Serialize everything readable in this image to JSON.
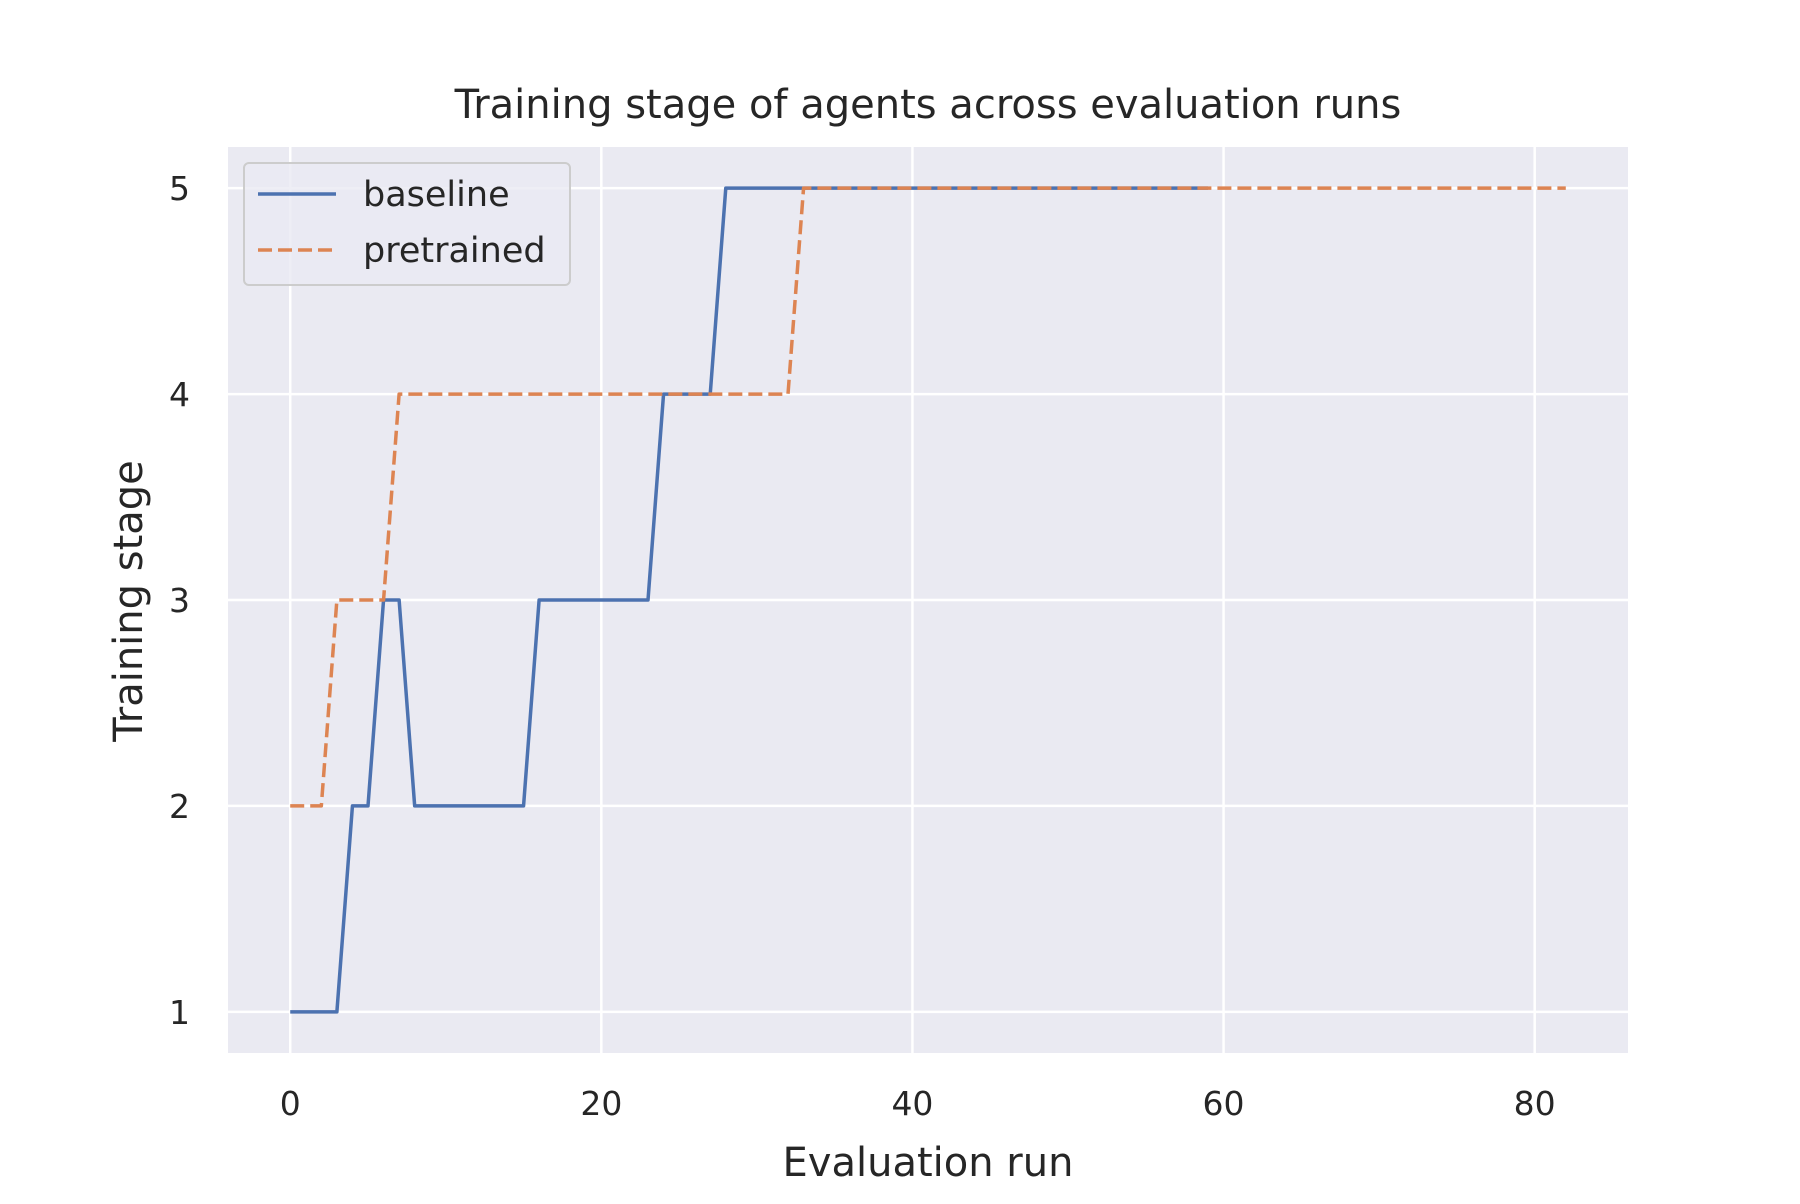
{
  "chart_data": {
    "type": "line",
    "title": "Training stage of agents across evaluation runs",
    "xlabel": "Evaluation run",
    "ylabel": "Training stage",
    "xlim": [
      -4,
      86
    ],
    "ylim": [
      0.8,
      5.2
    ],
    "xticks": [
      0,
      20,
      40,
      60,
      80
    ],
    "yticks": [
      1,
      2,
      3,
      4,
      5
    ],
    "xtick_labels": [
      "0",
      "20",
      "40",
      "60",
      "80"
    ],
    "ytick_labels": [
      "1",
      "2",
      "3",
      "4",
      "5"
    ],
    "grid": true,
    "legend_position": "top-left",
    "background_color": "#eaeaf2",
    "grid_color": "#ffffff",
    "series": [
      {
        "name": "baseline",
        "color": "#4c72b0",
        "linestyle": "solid",
        "points": [
          [
            0,
            1
          ],
          [
            3,
            1
          ],
          [
            4,
            2
          ],
          [
            5,
            2
          ],
          [
            6,
            3
          ],
          [
            7,
            3
          ],
          [
            8,
            2
          ],
          [
            15,
            2
          ],
          [
            16,
            3
          ],
          [
            23,
            3
          ],
          [
            24,
            4
          ],
          [
            27,
            4
          ],
          [
            28,
            5
          ],
          [
            59,
            5
          ]
        ]
      },
      {
        "name": "pretrained",
        "color": "#dd8452",
        "linestyle": "dashed",
        "points": [
          [
            0,
            2
          ],
          [
            2,
            2
          ],
          [
            3,
            3
          ],
          [
            6,
            3
          ],
          [
            7,
            4
          ],
          [
            32,
            4
          ],
          [
            33,
            5
          ],
          [
            82,
            5
          ]
        ]
      }
    ]
  }
}
